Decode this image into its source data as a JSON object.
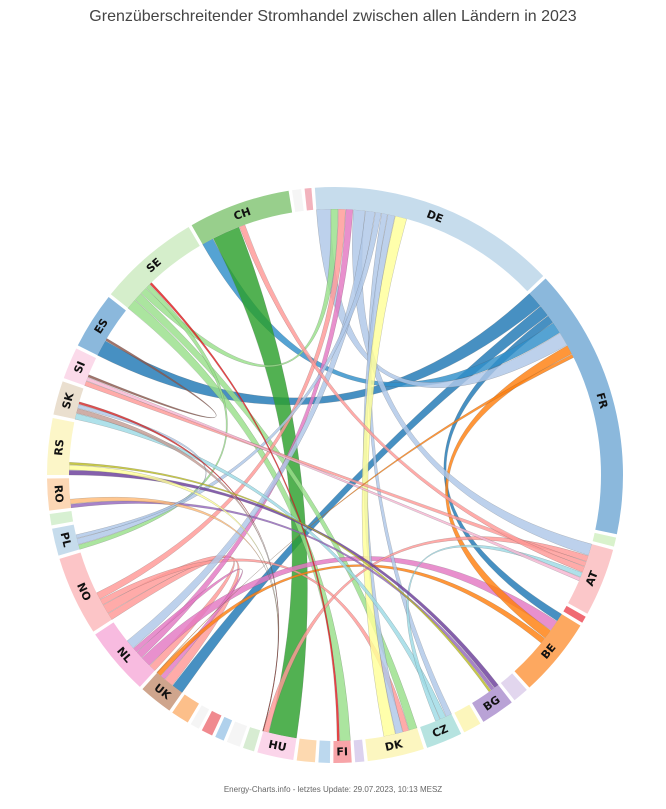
{
  "title": "Grenzüberschreitender Stromhandel zwischen allen Ländern in 2023",
  "footer": "Energy-Charts.info - letztes Update: 29.07.2023, 10:13 MESZ",
  "chart_data": {
    "type": "chord",
    "countries": [
      {
        "code": "DE",
        "value": 110,
        "color": "#c6dcec"
      },
      {
        "code": "FR",
        "value": 120,
        "color": "#8bb8dc"
      },
      {
        "code": "",
        "value": 4,
        "color": "#d9f2cc"
      },
      {
        "code": "AT",
        "value": 30,
        "color": "#fbc7c9"
      },
      {
        "code": "",
        "value": 3,
        "color": "#f06a73"
      },
      {
        "code": "BE",
        "value": 35,
        "color": "#fda860"
      },
      {
        "code": "",
        "value": 7,
        "color": "#e2d6ee"
      },
      {
        "code": "BG",
        "value": 15,
        "color": "#b9a2d6"
      },
      {
        "code": "",
        "value": 8,
        "color": "#fcf6bc"
      },
      {
        "code": "CZ",
        "value": 16,
        "color": "#b6e3e0"
      },
      {
        "code": "DK",
        "value": 25,
        "color": "#fcf6c0"
      },
      {
        "code": "",
        "value": 4,
        "color": "#dcd2ee"
      },
      {
        "code": "FI",
        "value": 8,
        "color": "#f7a4a8"
      },
      {
        "code": "",
        "value": 5,
        "color": "#bcd8ee"
      },
      {
        "code": "",
        "value": 8,
        "color": "#fdd9b0"
      },
      {
        "code": "HU",
        "value": 16,
        "color": "#fbd5ea"
      },
      {
        "code": "",
        "value": 5,
        "color": "#d7ecd2"
      },
      {
        "code": "",
        "value": 6,
        "color": "#f5f5f5"
      },
      {
        "code": "",
        "value": 4,
        "color": "#b0d1ec"
      },
      {
        "code": "",
        "value": 5,
        "color": "#f08a8f"
      },
      {
        "code": "",
        "value": 4,
        "color": "#f5f5f5"
      },
      {
        "code": "",
        "value": 8,
        "color": "#fcbf8a"
      },
      {
        "code": "UK",
        "value": 15,
        "color": "#cfa58d"
      },
      {
        "code": "NL",
        "value": 30,
        "color": "#f8bbe0"
      },
      {
        "code": "NO",
        "value": 35,
        "color": "#fcc5c7"
      },
      {
        "code": "PL",
        "value": 12,
        "color": "#c6dcec"
      },
      {
        "code": "",
        "value": 5,
        "color": "#d7f0d2"
      },
      {
        "code": "RO",
        "value": 14,
        "color": "#fcd7b5"
      },
      {
        "code": "RS",
        "value": 25,
        "color": "#fcf6c8"
      },
      {
        "code": "SK",
        "value": 15,
        "color": "#eadfcf"
      },
      {
        "code": "SI",
        "value": 14,
        "color": "#fbdaea"
      },
      {
        "code": "ES",
        "value": 25,
        "color": "#8bb8dc"
      },
      {
        "code": "SE",
        "value": 45,
        "color": "#d5eecb"
      },
      {
        "code": "CH",
        "value": 45,
        "color": "#98cf8c"
      },
      {
        "code": "",
        "value": 4,
        "color": "#f5f5f5"
      },
      {
        "code": "",
        "value": 3,
        "color": "#f2b3bd"
      }
    ],
    "flows": [
      {
        "from": "ES",
        "to": "FR",
        "value": 14,
        "color": "#1f77b4"
      },
      {
        "from": "FR",
        "to": "UK",
        "value": 10,
        "color": "#1f77b4"
      },
      {
        "from": "FR",
        "to": "BE",
        "value": 7,
        "color": "#1f77b4"
      },
      {
        "from": "FR",
        "to": "CH",
        "value": 10,
        "color": "#2f8fc9"
      },
      {
        "from": "FR",
        "to": "DE",
        "value": 12,
        "color": "#aec7e8"
      },
      {
        "from": "CH",
        "to": "HU",
        "value": 24,
        "color": "#2ca02c"
      },
      {
        "from": "SE",
        "to": "FI",
        "value": 9,
        "color": "#98df8a"
      },
      {
        "from": "SE",
        "to": "DK",
        "value": 7,
        "color": "#98df8a"
      },
      {
        "from": "SE",
        "to": "DE",
        "value": 6,
        "color": "#98df8a"
      },
      {
        "from": "SE",
        "to": "PL",
        "value": 4,
        "color": "#98df8a"
      },
      {
        "from": "NO",
        "to": "NL",
        "value": 6,
        "color": "#ff9896"
      },
      {
        "from": "NO",
        "to": "UK",
        "value": 8,
        "color": "#ff9896"
      },
      {
        "from": "NO",
        "to": "DK",
        "value": 5,
        "color": "#ff9896"
      },
      {
        "from": "NO",
        "to": "DE",
        "value": 6,
        "color": "#ff9896"
      },
      {
        "from": "NL",
        "to": "BE",
        "value": 9,
        "color": "#e377c2"
      },
      {
        "from": "NL",
        "to": "DE",
        "value": 6,
        "color": "#e377c2"
      },
      {
        "from": "NL",
        "to": "UK",
        "value": 4,
        "color": "#e377c2"
      },
      {
        "from": "BE",
        "to": "FR",
        "value": 8,
        "color": "#ff7f0e"
      },
      {
        "from": "BE",
        "to": "UK",
        "value": 5,
        "color": "#ff7f0e"
      },
      {
        "from": "DE",
        "to": "AT",
        "value": 10,
        "color": "#aec7e8"
      },
      {
        "from": "DE",
        "to": "NL",
        "value": 8,
        "color": "#aec7e8"
      },
      {
        "from": "DE",
        "to": "PL",
        "value": 5,
        "color": "#aec7e8"
      },
      {
        "from": "DE",
        "to": "CZ",
        "value": 5,
        "color": "#aec7e8"
      },
      {
        "from": "DE",
        "to": "DK",
        "value": 6,
        "color": "#aec7e8"
      },
      {
        "from": "DK",
        "to": "DE",
        "value": 10,
        "color": "#ffff99"
      },
      {
        "from": "AT",
        "to": "HU",
        "value": 5,
        "color": "#ff9896"
      },
      {
        "from": "AT",
        "to": "SI",
        "value": 4,
        "color": "#ff9896"
      },
      {
        "from": "AT",
        "to": "CH",
        "value": 5,
        "color": "#ff9896"
      },
      {
        "from": "CZ",
        "to": "SK",
        "value": 5,
        "color": "#9edae5"
      },
      {
        "from": "CZ",
        "to": "AT",
        "value": 4,
        "color": "#9edae5"
      },
      {
        "from": "BG",
        "to": "RS",
        "value": 4,
        "color": "#6a3d9a"
      },
      {
        "from": "BG",
        "to": "RO",
        "value": 3,
        "color": "#9467bd"
      },
      {
        "from": "RS",
        "to": "HU",
        "value": 4,
        "color": "#ffff99"
      },
      {
        "from": "RO",
        "to": "HU",
        "value": 4,
        "color": "#ffbb78"
      },
      {
        "from": "SK",
        "to": "HU",
        "value": 4,
        "color": "#c49c94"
      },
      {
        "from": "SI",
        "to": "AT",
        "value": 3,
        "color": "#f7b6d2"
      },
      {
        "from": "PL",
        "to": "SK",
        "value": 3,
        "color": "#aec7e8"
      },
      {
        "from": "FI",
        "to": "SE",
        "value": 2,
        "color": "#e41a1c"
      },
      {
        "from": "UK",
        "to": "FR",
        "value": 3,
        "color": "#ff7f0e"
      },
      {
        "from": "HU",
        "to": "SK",
        "value": 2,
        "color": "#d62728"
      },
      {
        "from": "ES",
        "to": "SI",
        "value": 2,
        "color": "#8c564b"
      },
      {
        "from": "RS",
        "to": "BG",
        "value": 2,
        "color": "#bcbd22"
      }
    ]
  }
}
